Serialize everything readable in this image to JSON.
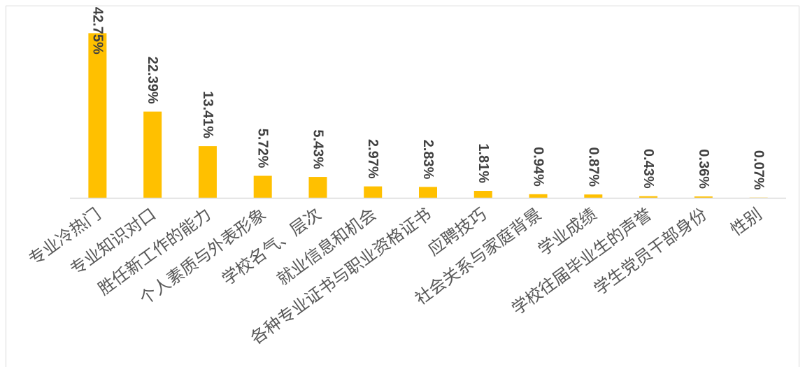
{
  "chart_data": {
    "type": "bar",
    "categories": [
      "专业冷热门",
      "专业知识对口",
      "胜任新工作的能力",
      "个人素质与外表形象",
      "学校名气、层次",
      "就业信息和机会",
      "各种专业证书与职业资格证书",
      "应聘技巧",
      "社会关系与家庭背景",
      "学业成绩",
      "学校往届毕业生的声誉",
      "学生党员干部身份",
      "性别"
    ],
    "values": [
      42.75,
      22.39,
      13.41,
      5.72,
      5.43,
      2.97,
      2.83,
      1.81,
      0.94,
      0.87,
      0.43,
      0.36,
      0.07
    ],
    "data_labels": [
      "42.75%",
      "22.39%",
      "13.41%",
      "5.72%",
      "5.43%",
      "2.97%",
      "2.83%",
      "1.81%",
      "0.94%",
      "0.87%",
      "0.43%",
      "0.36%",
      "0.07%"
    ],
    "ylim": [
      0,
      45
    ],
    "grid": false,
    "legend": false,
    "colors": {
      "bar": "#FFC000",
      "data_label": "#404040",
      "category_label": "#595959",
      "axis_line": "#D9D9D9",
      "chart_border": "#D9D9D9"
    }
  }
}
